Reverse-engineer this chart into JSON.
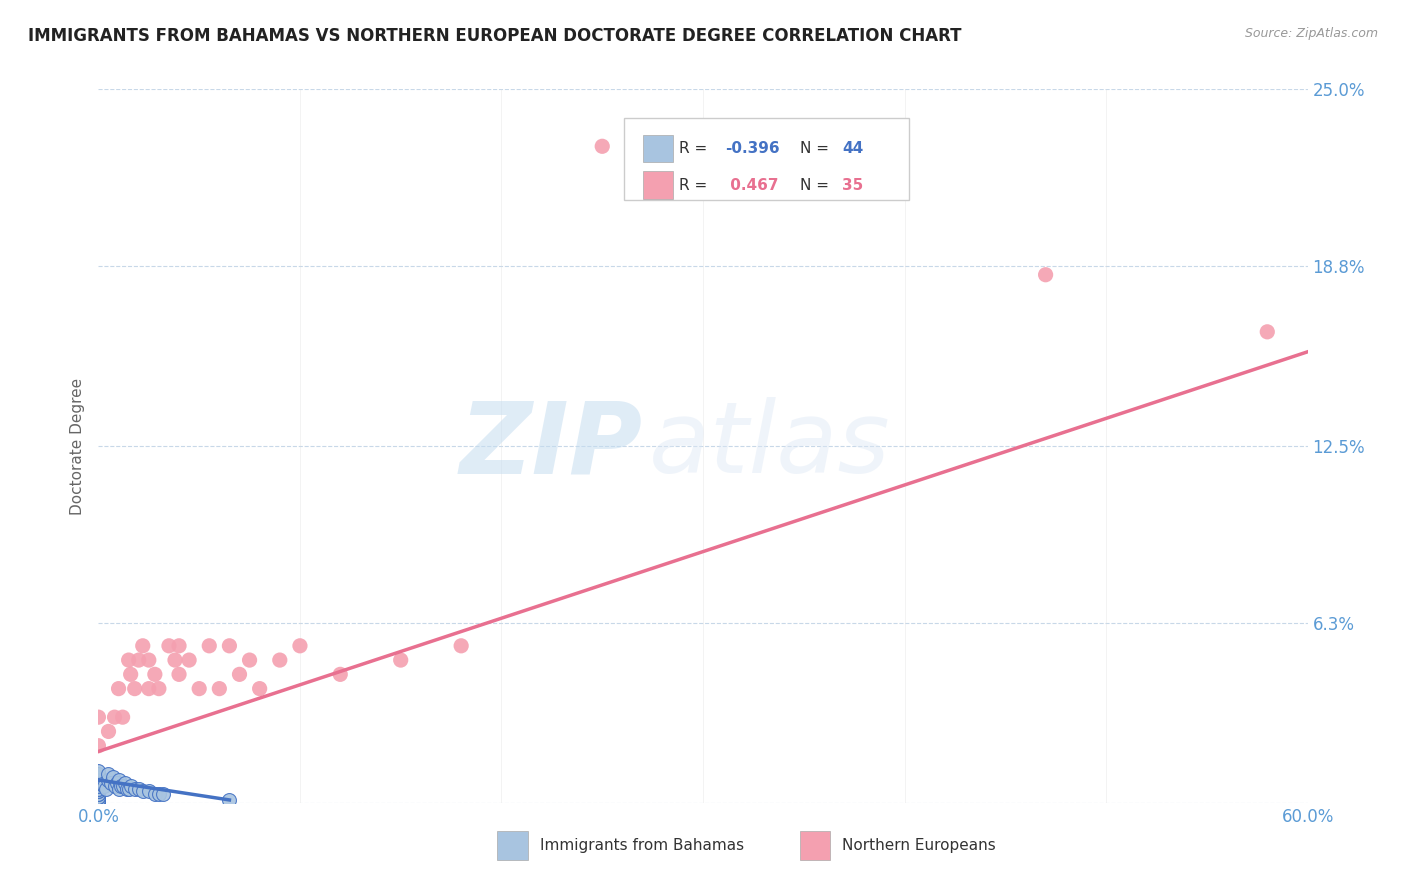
{
  "title": "IMMIGRANTS FROM BAHAMAS VS NORTHERN EUROPEAN DOCTORATE DEGREE CORRELATION CHART",
  "source": "Source: ZipAtlas.com",
  "ylabel": "Doctorate Degree",
  "xlim": [
    0.0,
    0.6
  ],
  "ylim": [
    0.0,
    0.25
  ],
  "xtick_positions": [
    0.0,
    0.6
  ],
  "xticklabels": [
    "0.0%",
    "60.0%"
  ],
  "yticks_right": [
    0.0,
    0.063,
    0.125,
    0.188,
    0.25
  ],
  "ytick_right_labels": [
    "",
    "6.3%",
    "12.5%",
    "18.8%",
    "25.0%"
  ],
  "background_color": "#ffffff",
  "watermark_zip": "ZIP",
  "watermark_atlas": "atlas",
  "series1_color": "#a8c4e0",
  "series2_color": "#f4a0b0",
  "series1_line_color": "#4472c4",
  "series2_line_color": "#e87090",
  "grid_color": "#c8d8e8",
  "title_color": "#222222",
  "axis_label_color": "#5b9bd5",
  "blue_scatter_x": [
    0.0,
    0.0,
    0.0,
    0.0,
    0.0,
    0.0,
    0.0,
    0.0,
    0.0,
    0.0,
    0.0,
    0.0,
    0.0,
    0.0,
    0.0,
    0.0,
    0.0,
    0.0,
    0.0,
    0.0,
    0.003,
    0.004,
    0.005,
    0.005,
    0.006,
    0.007,
    0.008,
    0.009,
    0.01,
    0.01,
    0.011,
    0.012,
    0.013,
    0.014,
    0.015,
    0.016,
    0.018,
    0.02,
    0.022,
    0.025,
    0.028,
    0.03,
    0.032,
    0.065
  ],
  "blue_scatter_y": [
    0.0,
    0.0,
    0.0,
    0.001,
    0.001,
    0.002,
    0.002,
    0.003,
    0.003,
    0.004,
    0.004,
    0.005,
    0.005,
    0.006,
    0.007,
    0.008,
    0.008,
    0.009,
    0.01,
    0.011,
    0.006,
    0.005,
    0.008,
    0.01,
    0.007,
    0.009,
    0.006,
    0.007,
    0.005,
    0.008,
    0.006,
    0.006,
    0.007,
    0.005,
    0.005,
    0.006,
    0.005,
    0.005,
    0.004,
    0.004,
    0.003,
    0.003,
    0.003,
    0.001
  ],
  "pink_scatter_x": [
    0.0,
    0.0,
    0.005,
    0.008,
    0.01,
    0.012,
    0.015,
    0.016,
    0.018,
    0.02,
    0.022,
    0.025,
    0.025,
    0.028,
    0.03,
    0.035,
    0.038,
    0.04,
    0.04,
    0.045,
    0.05,
    0.055,
    0.06,
    0.065,
    0.07,
    0.075,
    0.08,
    0.09,
    0.1,
    0.12,
    0.15,
    0.18,
    0.25,
    0.47,
    0.58
  ],
  "pink_scatter_y": [
    0.02,
    0.03,
    0.025,
    0.03,
    0.04,
    0.03,
    0.05,
    0.045,
    0.04,
    0.05,
    0.055,
    0.04,
    0.05,
    0.045,
    0.04,
    0.055,
    0.05,
    0.055,
    0.045,
    0.05,
    0.04,
    0.055,
    0.04,
    0.055,
    0.045,
    0.05,
    0.04,
    0.05,
    0.055,
    0.045,
    0.05,
    0.055,
    0.23,
    0.185,
    0.165
  ],
  "pink_line_x0": 0.0,
  "pink_line_y0": 0.018,
  "pink_line_x1": 0.6,
  "pink_line_y1": 0.158,
  "blue_line_x0": 0.0,
  "blue_line_y0": 0.008,
  "blue_line_x1": 0.065,
  "blue_line_y1": 0.001
}
